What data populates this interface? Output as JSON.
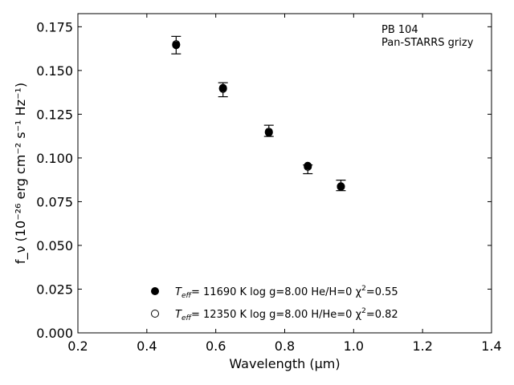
{
  "chart_data": {
    "type": "scatter",
    "title": "",
    "xlabel": "Wavelength (μm)",
    "ylabel": "f_ν (10⁻²⁶ erg cm⁻² s⁻¹ Hz⁻¹)",
    "xlim": [
      0.2,
      1.4
    ],
    "ylim": [
      0.0,
      0.1825
    ],
    "xticks": [
      0.2,
      0.4,
      0.6,
      0.8,
      1.0,
      1.2,
      1.4
    ],
    "xtick_labels": [
      "0.2",
      "0.4",
      "0.6",
      "0.8",
      "1.0",
      "1.2",
      "1.4"
    ],
    "yticks": [
      0.0,
      0.025,
      0.05,
      0.075,
      0.1,
      0.125,
      0.15,
      0.175
    ],
    "ytick_labels": [
      "0.000",
      "0.025",
      "0.050",
      "0.075",
      "0.100",
      "0.125",
      "0.150",
      "0.175"
    ],
    "grid": false,
    "annotation": [
      "PB 104",
      "Pan-STARRS grizy"
    ],
    "observed": {
      "x": [
        0.485,
        0.621,
        0.754,
        0.867,
        0.963
      ],
      "y": [
        0.1645,
        0.139,
        0.1155,
        0.0935,
        0.0843
      ],
      "yerr": [
        0.005,
        0.004,
        0.0032,
        0.0025,
        0.003
      ]
    },
    "series": [
      {
        "marker": "filled-circle",
        "label_parts": [
          "T",
          "eff",
          "= 11690 K  log g=8.00  He/H=0  χ",
          "2",
          "=0.55"
        ],
        "x": [
          0.485,
          0.621,
          0.754,
          0.867,
          0.963
        ],
        "y": [
          0.1645,
          0.14,
          0.1145,
          0.0955,
          0.0835
        ]
      },
      {
        "marker": "open-circle",
        "label_parts": [
          "T",
          "eff",
          "= 12350 K  log g=8.00  H/He=0  χ",
          "2",
          "=0.82"
        ],
        "x": [
          0.485,
          0.621,
          0.754,
          0.867,
          0.963
        ],
        "y": [
          0.165,
          0.1395,
          0.115,
          0.095,
          0.0838
        ]
      }
    ],
    "legend_position": "lower-center"
  }
}
